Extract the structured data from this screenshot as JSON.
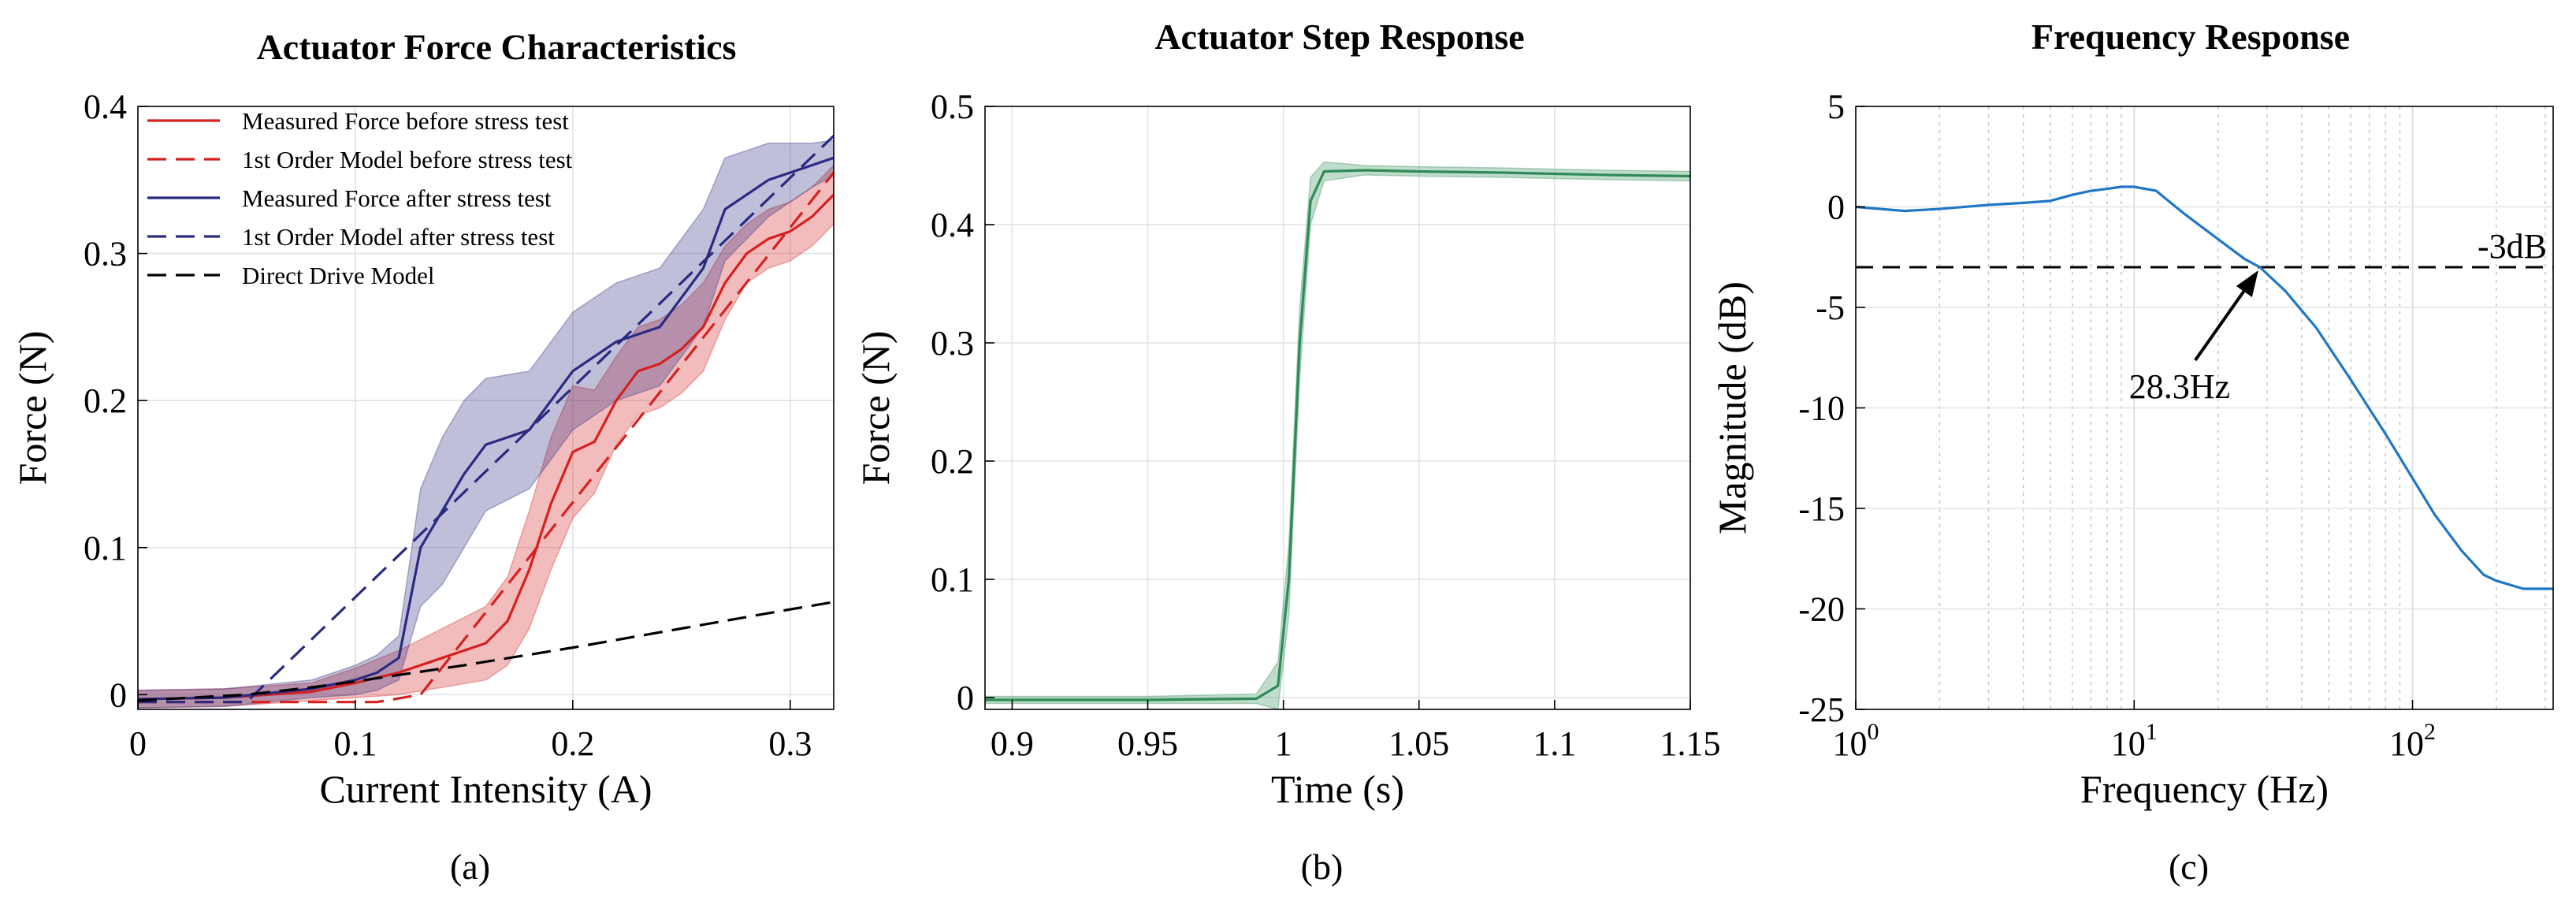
{
  "chart_data": [
    {
      "type": "line",
      "title": "Actuator Force Characteristics",
      "xlabel": "Current Intensity (A)",
      "ylabel": "Force (N)",
      "caption": "(a)",
      "xlim": [
        0,
        0.32
      ],
      "ylim": [
        -0.01,
        0.4
      ],
      "xticks": [
        0,
        0.1,
        0.2,
        0.3
      ],
      "xtick_labels": [
        "0",
        "0.1",
        "0.2",
        "0.3"
      ],
      "yticks": [
        0,
        0.1,
        0.2,
        0.3,
        0.4
      ],
      "ytick_labels": [
        "0",
        "0.1",
        "0.2",
        "0.3",
        "0.4"
      ],
      "grid": true,
      "legend_position": "top-left",
      "series": [
        {
          "name": "Measured Force before stress test",
          "color": "#d62020",
          "dash": "solid",
          "x": [
            0,
            0.04,
            0.08,
            0.1,
            0.12,
            0.14,
            0.16,
            0.17,
            0.18,
            0.19,
            0.2,
            0.21,
            0.22,
            0.23,
            0.24,
            0.25,
            0.26,
            0.27,
            0.28,
            0.29,
            0.3,
            0.31,
            0.32
          ],
          "y": [
            -0.003,
            -0.002,
            0.002,
            0.008,
            0.015,
            0.025,
            0.035,
            0.05,
            0.085,
            0.13,
            0.165,
            0.172,
            0.2,
            0.22,
            0.225,
            0.235,
            0.25,
            0.28,
            0.3,
            0.31,
            0.315,
            0.325,
            0.34
          ],
          "band": [
            0.006,
            0.006,
            0.006,
            0.01,
            0.015,
            0.02,
            0.025,
            0.03,
            0.04,
            0.045,
            0.045,
            0.035,
            0.03,
            0.03,
            0.03,
            0.03,
            0.03,
            0.025,
            0.02,
            0.02,
            0.02,
            0.02,
            0.02
          ]
        },
        {
          "name": "1st Order Model before stress test",
          "color": "#d62020",
          "dash": "dashed",
          "x": [
            0,
            0.11,
            0.13,
            0.32
          ],
          "y": [
            -0.005,
            -0.005,
            0.0,
            0.355
          ]
        },
        {
          "name": "Measured Force after stress test",
          "color": "#2a2a82",
          "dash": "solid",
          "x": [
            0,
            0.04,
            0.08,
            0.1,
            0.11,
            0.12,
            0.13,
            0.14,
            0.15,
            0.16,
            0.18,
            0.2,
            0.22,
            0.24,
            0.26,
            0.27,
            0.28,
            0.29,
            0.3,
            0.31,
            0.32
          ],
          "y": [
            -0.003,
            -0.002,
            0.004,
            0.01,
            0.015,
            0.025,
            0.1,
            0.125,
            0.15,
            0.17,
            0.18,
            0.22,
            0.24,
            0.25,
            0.29,
            0.33,
            0.34,
            0.35,
            0.355,
            0.36,
            0.365
          ],
          "band": [
            0.006,
            0.006,
            0.006,
            0.01,
            0.012,
            0.015,
            0.04,
            0.05,
            0.05,
            0.045,
            0.04,
            0.04,
            0.04,
            0.04,
            0.04,
            0.035,
            0.03,
            0.025,
            0.02,
            0.015,
            0.012
          ]
        },
        {
          "name": "1st Order Model after stress test",
          "color": "#2a2a82",
          "dash": "dashed",
          "x": [
            0,
            0.05,
            0.32
          ],
          "y": [
            -0.005,
            -0.005,
            0.38
          ]
        },
        {
          "name": "Direct Drive Model",
          "color": "#000000",
          "dash": "dashed",
          "x": [
            0,
            0.05,
            0.08,
            0.1,
            0.15,
            0.2,
            0.25,
            0.3,
            0.32
          ],
          "y": [
            -0.004,
            0.0,
            0.005,
            0.009,
            0.02,
            0.032,
            0.045,
            0.058,
            0.063
          ]
        }
      ]
    },
    {
      "type": "line",
      "title": "Actuator Step Response",
      "xlabel": "Time (s)",
      "ylabel": "Force (N)",
      "caption": "(b)",
      "xlim": [
        0.89,
        1.15
      ],
      "ylim": [
        -0.01,
        0.5
      ],
      "xticks": [
        0.9,
        0.95,
        1,
        1.05,
        1.1,
        1.15
      ],
      "xtick_labels": [
        "0.9",
        "0.95",
        "1",
        "1.05",
        "1.1",
        "1.15"
      ],
      "yticks": [
        0,
        0.1,
        0.2,
        0.3,
        0.4,
        0.5
      ],
      "ytick_labels": [
        "0",
        "0.1",
        "0.2",
        "0.3",
        "0.4",
        "0.5"
      ],
      "grid": true,
      "series": [
        {
          "color": "#2e8b57",
          "x": [
            0.89,
            0.95,
            0.99,
            0.998,
            1.002,
            1.006,
            1.01,
            1.015,
            1.03,
            1.05,
            1.08,
            1.1,
            1.12,
            1.15
          ],
          "y": [
            -0.002,
            -0.002,
            -0.001,
            0.01,
            0.1,
            0.3,
            0.42,
            0.445,
            0.446,
            0.445,
            0.444,
            0.443,
            0.442,
            0.441
          ],
          "band": [
            0.003,
            0.003,
            0.004,
            0.02,
            0.03,
            0.03,
            0.02,
            0.008,
            0.004,
            0.004,
            0.004,
            0.004,
            0.004,
            0.004
          ]
        }
      ]
    },
    {
      "type": "line",
      "title": "Frequency Response",
      "xlabel": "Frequency (Hz)",
      "ylabel": "Magnitude (dB)",
      "caption": "(c)",
      "xscale": "log",
      "xlim": [
        1,
        320
      ],
      "ylim": [
        -25,
        5
      ],
      "xticks": [
        1,
        10,
        100
      ],
      "xtick_labels": [
        {
          "base": "10",
          "exp": "0"
        },
        {
          "base": "10",
          "exp": "1"
        },
        {
          "base": "10",
          "exp": "2"
        }
      ],
      "yticks": [
        -25,
        -20,
        -15,
        -10,
        -5,
        0,
        5
      ],
      "ytick_labels": [
        "-25",
        "-20",
        "-15",
        "-10",
        "-5",
        "0",
        "5"
      ],
      "grid": true,
      "reference_line": {
        "y": -3,
        "label": "-3dB"
      },
      "annotation": {
        "text": "28.3Hz",
        "x": 28.3,
        "y": -3
      },
      "series": [
        {
          "color": "#1f77c4",
          "x": [
            1,
            1.5,
            2,
            3,
            4,
            5,
            6,
            7,
            8,
            9,
            10,
            12,
            15,
            20,
            25,
            28.3,
            35,
            45,
            60,
            80,
            100,
            120,
            150,
            180,
            200,
            250,
            320
          ],
          "y": [
            0,
            -0.2,
            -0.1,
            0.1,
            0.2,
            0.3,
            0.6,
            0.8,
            0.9,
            1.0,
            1.0,
            0.8,
            -0.3,
            -1.6,
            -2.6,
            -3.0,
            -4.2,
            -6.0,
            -8.6,
            -11.3,
            -13.5,
            -15.3,
            -17.1,
            -18.3,
            -18.6,
            -19.0,
            -19.0
          ]
        }
      ]
    }
  ]
}
